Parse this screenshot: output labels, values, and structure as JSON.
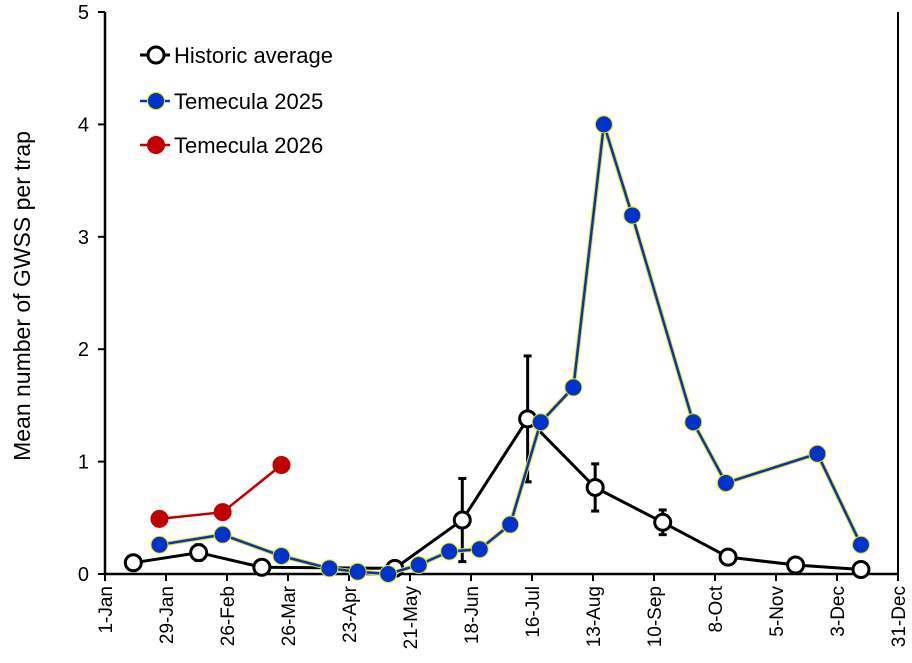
{
  "chart_data": {
    "type": "line",
    "title": "",
    "xlabel": "",
    "ylabel": "Mean number of GWSS per trap",
    "ylim": [
      0,
      5
    ],
    "yticks": [
      "0",
      "1",
      "2",
      "3",
      "4",
      "5"
    ],
    "xlim": [
      "1-Jan",
      "31-Dec"
    ],
    "xticks": [
      "1-Jan",
      "29-Jan",
      "26-Feb",
      "26-Mar",
      "23-Apr",
      "21-May",
      "18-Jun",
      "16-Jul",
      "13-Aug",
      "10-Sep",
      "8-Oct",
      "5-Nov",
      "3-Dec",
      "31-Dec"
    ],
    "grid": false,
    "legend_position": "top-left",
    "series": [
      {
        "name": "Historic average",
        "color": "#000000",
        "marker": "open-circle",
        "x": [
          "14-Jan",
          "13-Feb",
          "14-Mar",
          "14-May",
          "14-Jun",
          "14-Jul",
          "14-Aug",
          "14-Sep",
          "14-Oct",
          "14-Nov",
          "14-Dec"
        ],
        "y": [
          0.1,
          0.19,
          0.06,
          0.05,
          0.48,
          1.38,
          0.77,
          0.46,
          0.15,
          0.08,
          0.04
        ],
        "error": [
          0,
          0.07,
          0,
          0,
          0.37,
          0.56,
          0.21,
          0.11,
          0,
          0,
          0
        ]
      },
      {
        "name": "Temecula 2025",
        "color": "#0033CC",
        "outline": "#E8E800",
        "marker": "filled-circle",
        "x": [
          "26-Jan",
          "24-Feb",
          "23-Mar",
          "14-Apr",
          "27-Apr",
          "11-May",
          "25-May",
          "8-Jun",
          "22-Jun",
          "6-Jul",
          "20-Jul",
          "4-Aug",
          "18-Aug",
          "31-Aug",
          "28-Sep",
          "13-Oct",
          "24-Nov",
          "14-Dec"
        ],
        "y": [
          0.26,
          0.35,
          0.16,
          0.05,
          0.02,
          0.0,
          0.08,
          0.2,
          0.22,
          0.44,
          1.35,
          1.66,
          4.0,
          3.19,
          1.35,
          0.81,
          1.07,
          0.26
        ]
      },
      {
        "name": "Temecula 2026",
        "color": "#C00000",
        "marker": "filled-circle",
        "x": [
          "26-Jan",
          "24-Feb",
          "23-Mar"
        ],
        "y": [
          0.49,
          0.55,
          0.97
        ]
      }
    ]
  }
}
